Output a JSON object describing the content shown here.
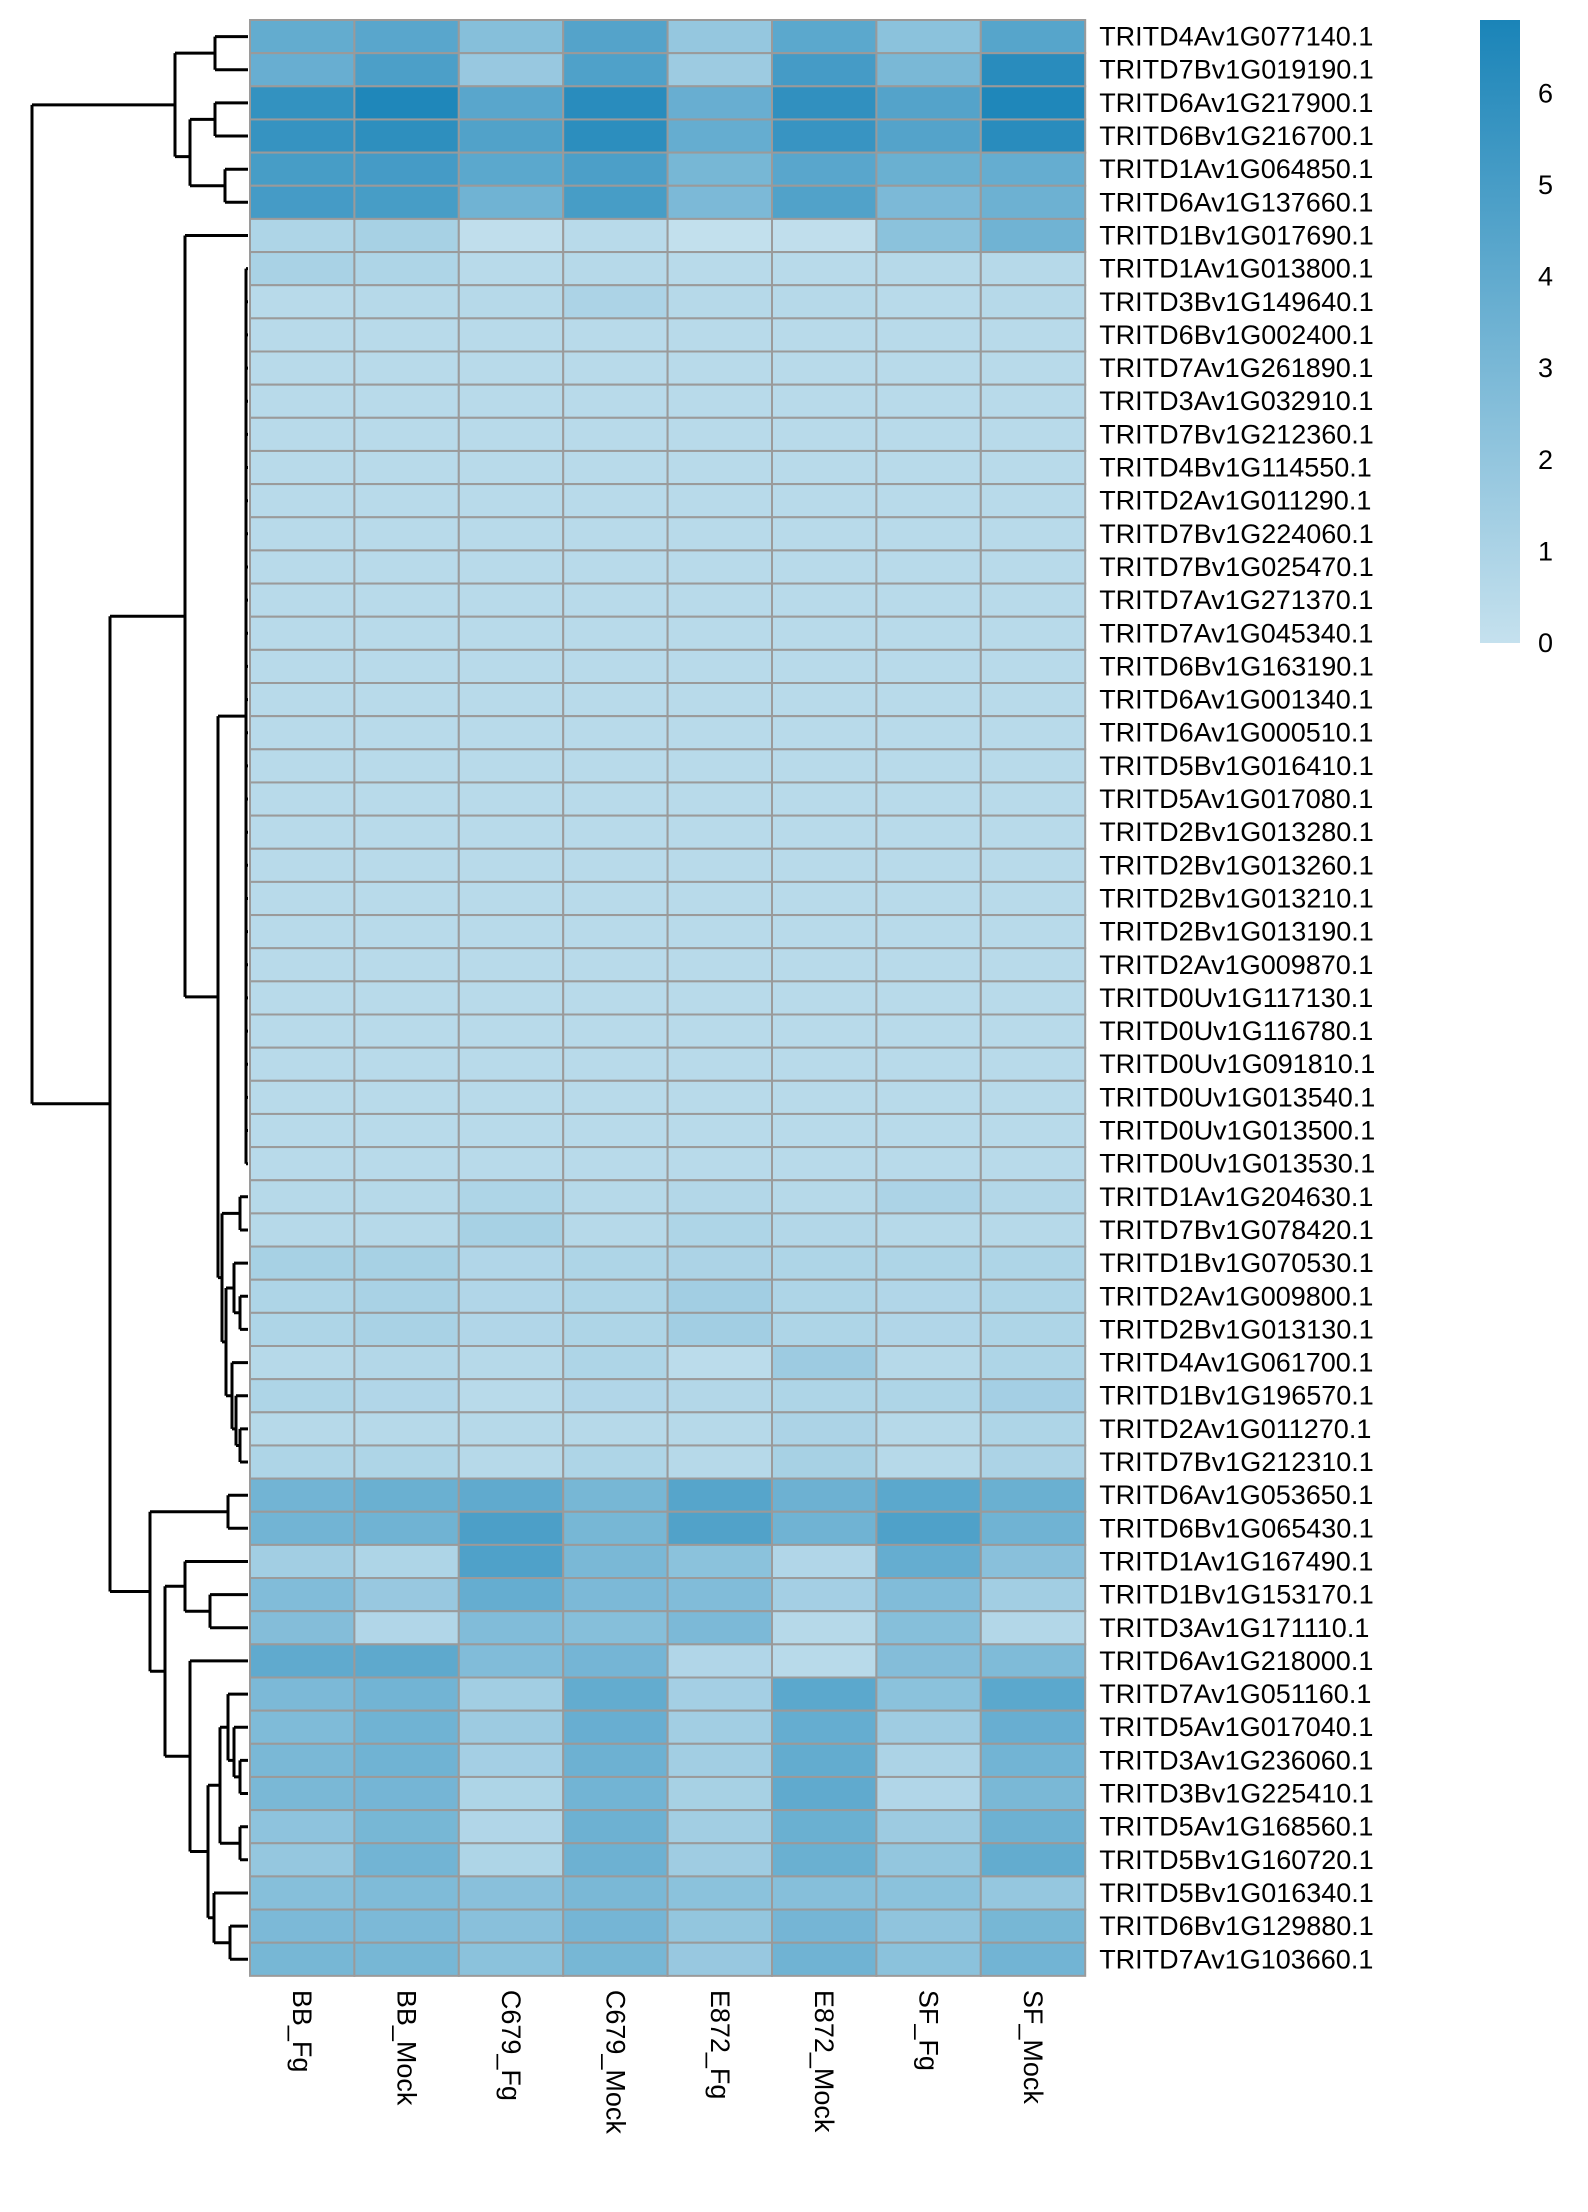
{
  "chart_data": {
    "type": "heatmap",
    "title": "",
    "xlabel": "",
    "ylabel": "",
    "columns": [
      "BB_Fg",
      "BB_Mock",
      "C679_Fg",
      "C679_Mock",
      "E872_Fg",
      "E872_Mock",
      "SF_Fg",
      "SF_Mock"
    ],
    "rows": [
      "TRITD4Av1G077140.1",
      "TRITD7Bv1G019190.1",
      "TRITD6Av1G217900.1",
      "TRITD6Bv1G216700.1",
      "TRITD1Av1G064850.1",
      "TRITD6Av1G137660.1",
      "TRITD1Bv1G017690.1",
      "TRITD1Av1G013800.1",
      "TRITD3Bv1G149640.1",
      "TRITD6Bv1G002400.1",
      "TRITD7Av1G261890.1",
      "TRITD3Av1G032910.1",
      "TRITD7Bv1G212360.1",
      "TRITD4Bv1G114550.1",
      "TRITD2Av1G011290.1",
      "TRITD7Bv1G224060.1",
      "TRITD7Bv1G025470.1",
      "TRITD7Av1G271370.1",
      "TRITD7Av1G045340.1",
      "TRITD6Bv1G163190.1",
      "TRITD6Av1G001340.1",
      "TRITD6Av1G000510.1",
      "TRITD5Bv1G016410.1",
      "TRITD5Av1G017080.1",
      "TRITD2Bv1G013280.1",
      "TRITD2Bv1G013260.1",
      "TRITD2Bv1G013210.1",
      "TRITD2Bv1G013190.1",
      "TRITD2Av1G009870.1",
      "TRITD0Uv1G117130.1",
      "TRITD0Uv1G116780.1",
      "TRITD0Uv1G091810.1",
      "TRITD0Uv1G013540.1",
      "TRITD0Uv1G013500.1",
      "TRITD0Uv1G013530.1",
      "TRITD1Av1G204630.1",
      "TRITD7Bv1G078420.1",
      "TRITD1Bv1G070530.1",
      "TRITD2Av1G009800.1",
      "TRITD2Bv1G013130.1",
      "TRITD4Av1G061700.1",
      "TRITD1Bv1G196570.1",
      "TRITD2Av1G011270.1",
      "TRITD7Bv1G212310.1",
      "TRITD6Av1G053650.1",
      "TRITD6Bv1G065430.1",
      "TRITD1Av1G167490.1",
      "TRITD1Bv1G153170.1",
      "TRITD3Av1G171110.1",
      "TRITD6Av1G218000.1",
      "TRITD7Av1G051160.1",
      "TRITD5Av1G017040.1",
      "TRITD3Av1G236060.1",
      "TRITD3Bv1G225410.1",
      "TRITD5Av1G168560.1",
      "TRITD5Bv1G160720.1",
      "TRITD5Bv1G016340.1",
      "TRITD6Bv1G129880.1",
      "TRITD7Av1G103660.1"
    ],
    "values": [
      [
        3.9,
        4.3,
        2.5,
        4.5,
        1.9,
        4.2,
        2.3,
        4.4
      ],
      [
        3.7,
        4.8,
        1.8,
        4.7,
        1.6,
        5.1,
        3.0,
        6.2
      ],
      [
        5.8,
        6.6,
        4.3,
        6.2,
        3.7,
        5.9,
        4.5,
        6.6
      ],
      [
        5.7,
        6.0,
        4.6,
        6.1,
        3.8,
        5.6,
        4.5,
        6.2
      ],
      [
        5.0,
        5.1,
        4.2,
        4.8,
        3.1,
        4.3,
        3.6,
        3.8
      ],
      [
        5.1,
        5.0,
        3.4,
        5.0,
        2.9,
        4.6,
        2.9,
        3.5
      ],
      [
        0.9,
        1.2,
        0.2,
        0.5,
        0.1,
        0.2,
        2.3,
        3.4
      ],
      [
        1.1,
        0.9,
        0.5,
        0.6,
        0.5,
        0.5,
        0.6,
        0.6
      ],
      [
        0.5,
        0.6,
        0.6,
        1.0,
        0.6,
        0.6,
        0.5,
        0.6
      ],
      [
        0.5,
        0.5,
        0.5,
        0.5,
        0.5,
        0.5,
        0.5,
        0.5
      ],
      [
        0.5,
        0.5,
        0.5,
        0.5,
        0.5,
        0.5,
        0.5,
        0.5
      ],
      [
        0.5,
        0.5,
        0.5,
        0.5,
        0.5,
        0.5,
        0.5,
        0.5
      ],
      [
        0.5,
        0.5,
        0.5,
        0.5,
        0.5,
        0.5,
        0.5,
        0.5
      ],
      [
        0.5,
        0.5,
        0.5,
        0.5,
        0.5,
        0.5,
        0.5,
        0.5
      ],
      [
        0.5,
        0.5,
        0.5,
        0.5,
        0.5,
        0.5,
        0.5,
        0.5
      ],
      [
        0.5,
        0.5,
        0.5,
        0.5,
        0.5,
        0.5,
        0.5,
        0.5
      ],
      [
        0.5,
        0.5,
        0.5,
        0.5,
        0.5,
        0.5,
        0.5,
        0.5
      ],
      [
        0.5,
        0.5,
        0.5,
        0.5,
        0.5,
        0.5,
        0.5,
        0.5
      ],
      [
        0.5,
        0.5,
        0.5,
        0.5,
        0.5,
        0.5,
        0.5,
        0.5
      ],
      [
        0.5,
        0.5,
        0.5,
        0.5,
        0.5,
        0.5,
        0.5,
        0.5
      ],
      [
        0.5,
        0.5,
        0.5,
        0.5,
        0.5,
        0.5,
        0.5,
        0.5
      ],
      [
        0.5,
        0.5,
        0.5,
        0.5,
        0.5,
        0.5,
        0.5,
        0.5
      ],
      [
        0.5,
        0.5,
        0.5,
        0.5,
        0.5,
        0.5,
        0.5,
        0.5
      ],
      [
        0.5,
        0.5,
        0.5,
        0.5,
        0.5,
        0.5,
        0.5,
        0.5
      ],
      [
        0.5,
        0.5,
        0.5,
        0.5,
        0.5,
        0.5,
        0.5,
        0.5
      ],
      [
        0.5,
        0.5,
        0.5,
        0.5,
        0.5,
        0.5,
        0.5,
        0.5
      ],
      [
        0.5,
        0.5,
        0.5,
        0.5,
        0.5,
        0.5,
        0.5,
        0.5
      ],
      [
        0.5,
        0.5,
        0.5,
        0.5,
        0.5,
        0.5,
        0.5,
        0.5
      ],
      [
        0.5,
        0.5,
        0.5,
        0.5,
        0.5,
        0.5,
        0.5,
        0.5
      ],
      [
        0.5,
        0.5,
        0.5,
        0.5,
        0.5,
        0.5,
        0.5,
        0.5
      ],
      [
        0.5,
        0.5,
        0.5,
        0.5,
        0.5,
        0.5,
        0.5,
        0.5
      ],
      [
        0.5,
        0.5,
        0.5,
        0.5,
        0.5,
        0.5,
        0.5,
        0.5
      ],
      [
        0.5,
        0.5,
        0.5,
        0.5,
        0.5,
        0.5,
        0.5,
        0.5
      ],
      [
        0.5,
        0.5,
        0.5,
        0.5,
        0.5,
        0.5,
        0.5,
        0.5
      ],
      [
        0.5,
        0.5,
        0.5,
        0.5,
        0.5,
        0.5,
        0.5,
        0.5
      ],
      [
        0.6,
        0.6,
        0.9,
        0.6,
        0.7,
        0.6,
        1.0,
        0.7
      ],
      [
        0.6,
        0.6,
        1.2,
        0.6,
        0.9,
        0.7,
        0.6,
        0.6
      ],
      [
        1.2,
        1.2,
        0.8,
        0.9,
        1.0,
        0.9,
        0.9,
        0.9
      ],
      [
        0.9,
        1.1,
        0.8,
        0.9,
        1.4,
        0.9,
        0.8,
        0.9
      ],
      [
        0.9,
        1.1,
        0.8,
        0.9,
        1.4,
        0.9,
        0.8,
        0.9
      ],
      [
        0.6,
        0.7,
        0.6,
        0.9,
        0.4,
        1.6,
        0.6,
        0.9
      ],
      [
        0.9,
        0.8,
        0.5,
        0.8,
        0.7,
        0.9,
        0.9,
        1.3
      ],
      [
        0.6,
        0.6,
        0.6,
        0.6,
        0.6,
        1.0,
        0.6,
        0.9
      ],
      [
        0.9,
        0.9,
        0.6,
        0.9,
        0.6,
        1.2,
        0.6,
        1.0
      ],
      [
        3.3,
        3.6,
        4.0,
        3.1,
        4.4,
        3.5,
        4.2,
        3.6
      ],
      [
        3.3,
        3.4,
        4.8,
        3.1,
        4.6,
        3.4,
        4.7,
        3.4
      ],
      [
        1.4,
        0.9,
        4.7,
        3.0,
        2.3,
        0.8,
        3.8,
        2.4
      ],
      [
        2.7,
        1.8,
        3.8,
        2.9,
        2.7,
        1.3,
        2.7,
        1.4
      ],
      [
        2.6,
        0.8,
        2.7,
        2.5,
        2.9,
        0.6,
        2.5,
        0.7
      ],
      [
        4.0,
        4.1,
        2.7,
        3.2,
        0.8,
        0.5,
        2.6,
        2.8
      ],
      [
        2.9,
        3.3,
        1.4,
        3.9,
        1.3,
        4.2,
        2.3,
        4.2
      ],
      [
        2.8,
        3.4,
        1.6,
        3.7,
        1.4,
        3.8,
        1.5,
        3.7
      ],
      [
        3.0,
        3.4,
        1.3,
        3.5,
        1.4,
        3.9,
        1.0,
        3.3
      ],
      [
        3.0,
        3.2,
        0.9,
        3.3,
        1.2,
        4.0,
        0.8,
        3.0
      ],
      [
        2.2,
        3.1,
        0.8,
        3.5,
        1.4,
        3.6,
        1.6,
        3.5
      ],
      [
        1.9,
        3.3,
        0.9,
        3.5,
        1.5,
        3.6,
        2.0,
        3.9
      ],
      [
        2.5,
        2.8,
        2.4,
        3.0,
        2.3,
        2.5,
        2.3,
        1.9
      ],
      [
        2.9,
        2.9,
        2.4,
        3.2,
        2.0,
        3.2,
        2.1,
        3.1
      ],
      [
        3.1,
        3.1,
        2.3,
        3.1,
        1.8,
        3.4,
        2.3,
        3.3
      ]
    ],
    "color_scale": {
      "min": 0,
      "max": 6.8,
      "low_color": "#c5e1ee",
      "high_color": "#1a84b8",
      "legend_ticks": [
        0,
        1,
        2,
        3,
        4,
        5,
        6
      ],
      "legend_placement": "top-right"
    },
    "cell_border_color": "#9a9a9a",
    "row_dendrogram": true,
    "column_dendrogram": false
  }
}
